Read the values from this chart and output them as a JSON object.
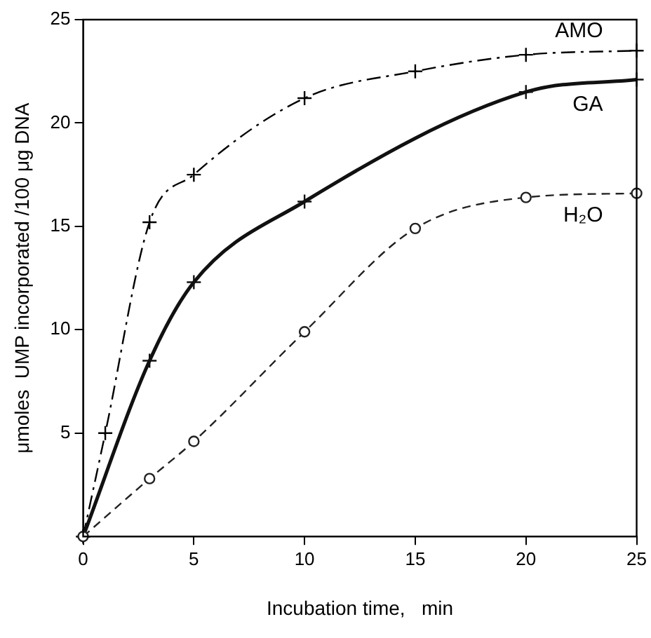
{
  "chart_data": {
    "type": "line",
    "xlabel": "Incubation time,   min",
    "ylabel": "μmoles  UMP incorporated /100 μg DNA",
    "xlim": [
      0,
      25
    ],
    "ylim": [
      0,
      25
    ],
    "xticks": [
      0,
      5,
      10,
      15,
      20,
      25
    ],
    "yticks": [
      5,
      10,
      15,
      20,
      25
    ],
    "grid": false,
    "legend": false,
    "series": [
      {
        "name": "AMO",
        "color": "#000000",
        "marker": "cross",
        "line_style": "dashdot",
        "x": [
          0,
          1,
          3,
          5,
          10,
          15,
          20,
          25
        ],
        "values": [
          0,
          5,
          15.2,
          17.5,
          21.2,
          22.5,
          23.3,
          23.5
        ]
      },
      {
        "name": "GA",
        "color": "#111111",
        "marker": "cross",
        "line_style": "solid",
        "x": [
          0,
          3,
          5,
          10,
          20,
          25
        ],
        "values": [
          0,
          8.5,
          12.3,
          16.2,
          21.5,
          22.1
        ]
      },
      {
        "name": "H₂O",
        "color": "#222222",
        "marker": "circle",
        "line_style": "dashed",
        "x": [
          0,
          3,
          5,
          10,
          15,
          20,
          25
        ],
        "values": [
          0,
          2.8,
          4.6,
          9.9,
          14.9,
          16.4,
          16.6
        ]
      }
    ]
  }
}
